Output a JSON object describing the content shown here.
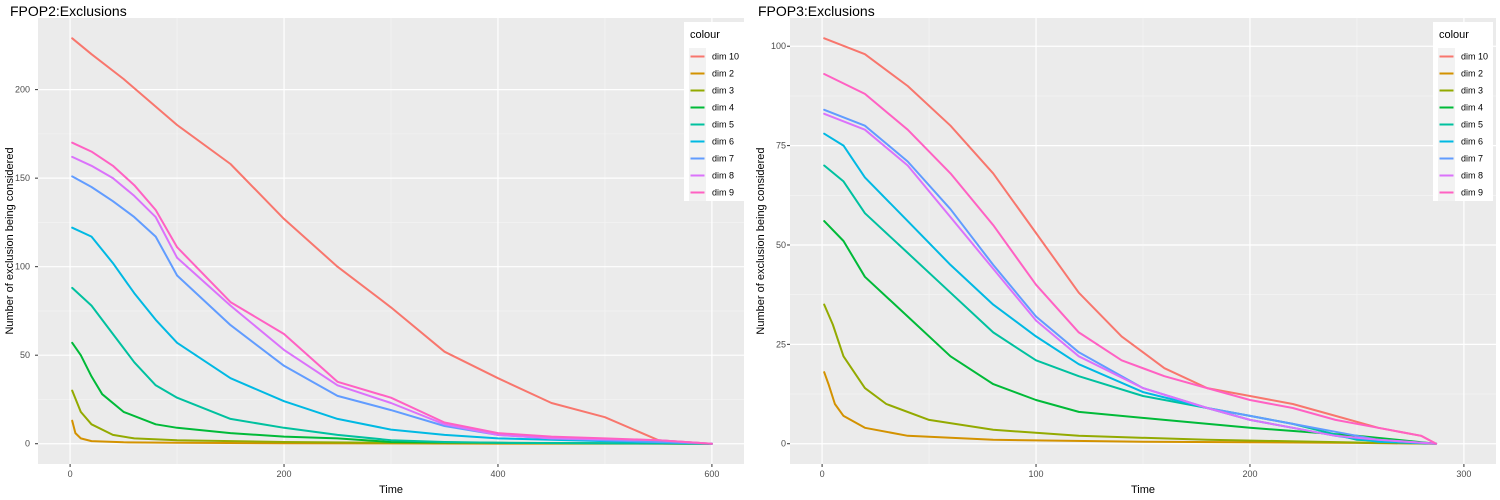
{
  "colors": {
    "panel_bg": "#EBEBEB",
    "grid_major": "#FFFFFF",
    "grid_minor": "#F5F5F5",
    "legend_bg": "#F2F2F2"
  },
  "chart_data": [
    {
      "type": "line",
      "title": "FPOP2:Exclusions",
      "xlabel": "Time",
      "ylabel": "Number of exclusion being considered",
      "xlim": [
        0,
        600
      ],
      "ylim": [
        0,
        229
      ],
      "x_ticks": [
        0,
        200,
        400,
        600
      ],
      "y_ticks": [
        0,
        50,
        100,
        150,
        200
      ],
      "grid": true,
      "legend": {
        "title": "colour",
        "placement": "right"
      },
      "series": [
        {
          "name": "dim 10",
          "color": "#F8766D",
          "points": [
            [
              2,
              229
            ],
            [
              20,
              220
            ],
            [
              50,
              206
            ],
            [
              100,
              180
            ],
            [
              150,
              158
            ],
            [
              200,
              127
            ],
            [
              250,
              100
            ],
            [
              300,
              77
            ],
            [
              350,
              52
            ],
            [
              400,
              37
            ],
            [
              450,
              23
            ],
            [
              500,
              15
            ],
            [
              550,
              2
            ],
            [
              600,
              0
            ]
          ]
        },
        {
          "name": "dim 2",
          "color": "#D39200",
          "points": [
            [
              2,
              13
            ],
            [
              5,
              6
            ],
            [
              10,
              3
            ],
            [
              20,
              1.5
            ],
            [
              50,
              0.8
            ],
            [
              100,
              0.5
            ],
            [
              200,
              0.3
            ],
            [
              400,
              0.1
            ],
            [
              600,
              0
            ]
          ]
        },
        {
          "name": "dim 3",
          "color": "#93AA00",
          "points": [
            [
              2,
              30
            ],
            [
              10,
              18
            ],
            [
              20,
              11
            ],
            [
              40,
              5
            ],
            [
              60,
              3
            ],
            [
              100,
              2
            ],
            [
              200,
              1
            ],
            [
              300,
              0.5
            ],
            [
              600,
              0
            ]
          ]
        },
        {
          "name": "dim 4",
          "color": "#00BA38",
          "points": [
            [
              2,
              57
            ],
            [
              10,
              50
            ],
            [
              20,
              38
            ],
            [
              30,
              28
            ],
            [
              50,
              18
            ],
            [
              80,
              11
            ],
            [
              100,
              9
            ],
            [
              150,
              6
            ],
            [
              200,
              4
            ],
            [
              250,
              3
            ],
            [
              300,
              1
            ],
            [
              400,
              0.5
            ],
            [
              600,
              0
            ]
          ]
        },
        {
          "name": "dim 5",
          "color": "#00C19F",
          "points": [
            [
              2,
              88
            ],
            [
              20,
              78
            ],
            [
              40,
              62
            ],
            [
              60,
              46
            ],
            [
              80,
              33
            ],
            [
              100,
              26
            ],
            [
              150,
              14
            ],
            [
              200,
              9
            ],
            [
              250,
              5
            ],
            [
              300,
              2
            ],
            [
              350,
              1
            ],
            [
              400,
              0.5
            ],
            [
              600,
              0
            ]
          ]
        },
        {
          "name": "dim 6",
          "color": "#00B9E3",
          "points": [
            [
              2,
              122
            ],
            [
              20,
              117
            ],
            [
              40,
              102
            ],
            [
              60,
              85
            ],
            [
              80,
              70
            ],
            [
              100,
              57
            ],
            [
              150,
              37
            ],
            [
              200,
              24
            ],
            [
              250,
              14
            ],
            [
              300,
              8
            ],
            [
              350,
              5
            ],
            [
              400,
              3
            ],
            [
              500,
              1.5
            ],
            [
              600,
              0
            ]
          ]
        },
        {
          "name": "dim 7",
          "color": "#619CFF",
          "points": [
            [
              2,
              151
            ],
            [
              20,
              145
            ],
            [
              40,
              137
            ],
            [
              60,
              128
            ],
            [
              80,
              117
            ],
            [
              100,
              95
            ],
            [
              150,
              67
            ],
            [
              200,
              44
            ],
            [
              250,
              27
            ],
            [
              300,
              19
            ],
            [
              350,
              10
            ],
            [
              400,
              5
            ],
            [
              450,
              3
            ],
            [
              500,
              2
            ],
            [
              550,
              1
            ],
            [
              600,
              0
            ]
          ]
        },
        {
          "name": "dim 8",
          "color": "#DB72FB",
          "points": [
            [
              2,
              162
            ],
            [
              20,
              157
            ],
            [
              40,
              150
            ],
            [
              60,
              140
            ],
            [
              80,
              128
            ],
            [
              100,
              105
            ],
            [
              150,
              78
            ],
            [
              200,
              53
            ],
            [
              250,
              33
            ],
            [
              300,
              23
            ],
            [
              350,
              11
            ],
            [
              400,
              5
            ],
            [
              450,
              3
            ],
            [
              500,
              2.5
            ],
            [
              550,
              2
            ],
            [
              600,
              0
            ]
          ]
        },
        {
          "name": "dim 9",
          "color": "#FF61C3",
          "points": [
            [
              2,
              170
            ],
            [
              20,
              165
            ],
            [
              40,
              157
            ],
            [
              60,
              146
            ],
            [
              80,
              132
            ],
            [
              100,
              111
            ],
            [
              150,
              80
            ],
            [
              200,
              62
            ],
            [
              250,
              35
            ],
            [
              300,
              26
            ],
            [
              350,
              12
            ],
            [
              400,
              6
            ],
            [
              450,
              4
            ],
            [
              500,
              3
            ],
            [
              550,
              2
            ],
            [
              600,
              0
            ]
          ]
        }
      ]
    },
    {
      "type": "line",
      "title": "FPOP3:Exclusions",
      "xlabel": "Time",
      "ylabel": "Number of exclusion being considered",
      "xlim": [
        0,
        300
      ],
      "ylim": [
        0,
        102
      ],
      "x_ticks": [
        0,
        100,
        200,
        300
      ],
      "y_ticks": [
        0,
        25,
        50,
        75,
        100
      ],
      "grid": true,
      "legend": {
        "title": "colour",
        "placement": "right"
      },
      "series": [
        {
          "name": "dim 10",
          "color": "#F8766D",
          "points": [
            [
              1,
              102
            ],
            [
              20,
              98
            ],
            [
              40,
              90
            ],
            [
              60,
              80
            ],
            [
              80,
              68
            ],
            [
              100,
              53
            ],
            [
              120,
              38
            ],
            [
              140,
              27
            ],
            [
              160,
              19
            ],
            [
              180,
              14
            ],
            [
              200,
              12
            ],
            [
              220,
              10
            ],
            [
              240,
              7
            ],
            [
              260,
              4
            ],
            [
              280,
              2
            ],
            [
              287,
              0
            ]
          ]
        },
        {
          "name": "dim 2",
          "color": "#D39200",
          "points": [
            [
              1,
              18
            ],
            [
              3,
              15
            ],
            [
              6,
              10
            ],
            [
              10,
              7
            ],
            [
              20,
              4
            ],
            [
              40,
              2
            ],
            [
              80,
              1
            ],
            [
              150,
              0.5
            ],
            [
              250,
              0.2
            ],
            [
              287,
              0
            ]
          ]
        },
        {
          "name": "dim 3",
          "color": "#93AA00",
          "points": [
            [
              1,
              35
            ],
            [
              5,
              30
            ],
            [
              10,
              22
            ],
            [
              20,
              14
            ],
            [
              30,
              10
            ],
            [
              50,
              6
            ],
            [
              80,
              3.5
            ],
            [
              120,
              2
            ],
            [
              180,
              1
            ],
            [
              250,
              0.3
            ],
            [
              287,
              0
            ]
          ]
        },
        {
          "name": "dim 4",
          "color": "#00BA38",
          "points": [
            [
              1,
              56
            ],
            [
              10,
              51
            ],
            [
              20,
              42
            ],
            [
              40,
              32
            ],
            [
              60,
              22
            ],
            [
              80,
              15
            ],
            [
              100,
              11
            ],
            [
              120,
              8
            ],
            [
              160,
              6
            ],
            [
              200,
              4
            ],
            [
              250,
              2
            ],
            [
              287,
              0
            ]
          ]
        },
        {
          "name": "dim 5",
          "color": "#00C19F",
          "points": [
            [
              1,
              70
            ],
            [
              10,
              66
            ],
            [
              20,
              58
            ],
            [
              40,
              48
            ],
            [
              60,
              38
            ],
            [
              80,
              28
            ],
            [
              100,
              21
            ],
            [
              120,
              17
            ],
            [
              150,
              12
            ],
            [
              180,
              9
            ],
            [
              200,
              7
            ],
            [
              220,
              5
            ],
            [
              250,
              1
            ],
            [
              287,
              0
            ]
          ]
        },
        {
          "name": "dim 6",
          "color": "#00B9E3",
          "points": [
            [
              1,
              78
            ],
            [
              10,
              75
            ],
            [
              20,
              67
            ],
            [
              40,
              56
            ],
            [
              60,
              45
            ],
            [
              80,
              35
            ],
            [
              100,
              27
            ],
            [
              120,
              20
            ],
            [
              150,
              13
            ],
            [
              180,
              9
            ],
            [
              200,
              6
            ],
            [
              220,
              4
            ],
            [
              240,
              2
            ],
            [
              260,
              0.5
            ],
            [
              287,
              0
            ]
          ]
        },
        {
          "name": "dim 7",
          "color": "#619CFF",
          "points": [
            [
              1,
              84
            ],
            [
              20,
              80
            ],
            [
              40,
              71
            ],
            [
              60,
              59
            ],
            [
              80,
              45
            ],
            [
              100,
              32
            ],
            [
              120,
              23
            ],
            [
              150,
              14
            ],
            [
              180,
              9
            ],
            [
              200,
              7
            ],
            [
              220,
              5
            ],
            [
              240,
              3
            ],
            [
              260,
              1
            ],
            [
              287,
              0
            ]
          ]
        },
        {
          "name": "dim 8",
          "color": "#DB72FB",
          "points": [
            [
              1,
              83
            ],
            [
              20,
              79
            ],
            [
              40,
              70
            ],
            [
              60,
              57
            ],
            [
              80,
              44
            ],
            [
              100,
              31
            ],
            [
              120,
              22
            ],
            [
              150,
              14
            ],
            [
              180,
              9
            ],
            [
              200,
              6
            ],
            [
              220,
              4
            ],
            [
              240,
              2
            ],
            [
              260,
              1
            ],
            [
              287,
              0
            ]
          ]
        },
        {
          "name": "dim 9",
          "color": "#FF61C3",
          "points": [
            [
              1,
              93
            ],
            [
              20,
              88
            ],
            [
              40,
              79
            ],
            [
              60,
              68
            ],
            [
              80,
              55
            ],
            [
              100,
              40
            ],
            [
              120,
              28
            ],
            [
              140,
              21
            ],
            [
              160,
              17
            ],
            [
              180,
              14
            ],
            [
              200,
              11
            ],
            [
              220,
              9
            ],
            [
              240,
              6
            ],
            [
              260,
              4
            ],
            [
              280,
              2
            ],
            [
              287,
              0
            ]
          ]
        }
      ]
    }
  ]
}
